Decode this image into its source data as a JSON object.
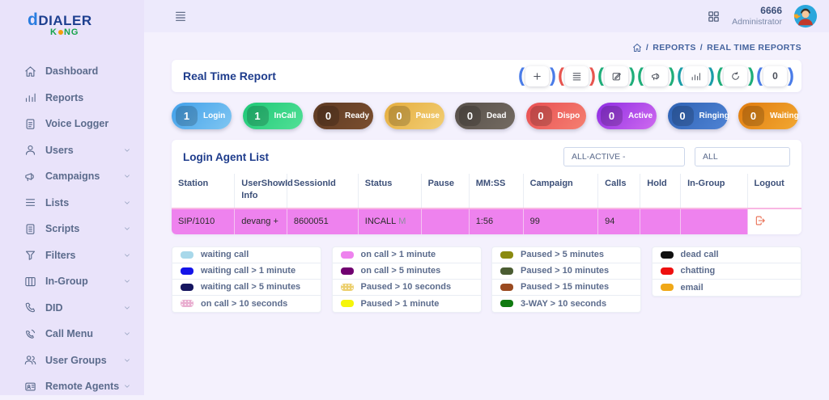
{
  "brand": {
    "line1": "DIALER",
    "line2_k": "K",
    "line2_ng": "NG"
  },
  "topbar": {
    "user_id": "6666",
    "user_role": "Administrator"
  },
  "breadcrumb": {
    "items": [
      "REPORTS",
      "REAL TIME REPORTS"
    ]
  },
  "sidebar": {
    "items": [
      {
        "label": "Dashboard",
        "icon": "home",
        "chevron": false
      },
      {
        "label": "Reports",
        "icon": "chart",
        "chevron": false
      },
      {
        "label": "Voice Logger",
        "icon": "voice",
        "chevron": false
      },
      {
        "label": "Users",
        "icon": "user",
        "chevron": true
      },
      {
        "label": "Campaigns",
        "icon": "megaphone",
        "chevron": true
      },
      {
        "label": "Lists",
        "icon": "list",
        "chevron": true
      },
      {
        "label": "Scripts",
        "icon": "script",
        "chevron": true
      },
      {
        "label": "Filters",
        "icon": "filter",
        "chevron": true
      },
      {
        "label": "In-Group",
        "icon": "ingroup",
        "chevron": true
      },
      {
        "label": "DID",
        "icon": "phone",
        "chevron": true
      },
      {
        "label": "Call Menu",
        "icon": "callmenu",
        "chevron": true
      },
      {
        "label": "User Groups",
        "icon": "usergroups",
        "chevron": true
      },
      {
        "label": "Remote Agents",
        "icon": "remote",
        "chevron": true
      }
    ]
  },
  "report": {
    "title": "Real Time Report",
    "buttons": [
      {
        "name": "add",
        "icon": "plus",
        "paren": "#4a7ce8",
        "text": null
      },
      {
        "name": "menu",
        "icon": "burger",
        "paren": "#e8554f",
        "text": null
      },
      {
        "name": "edit",
        "icon": "edit",
        "paren": "#1fae7a",
        "text": null
      },
      {
        "name": "broadcast",
        "icon": "megaphone",
        "paren": "#1fae7a",
        "text": null
      },
      {
        "name": "stats",
        "icon": "chart",
        "paren": "#1a9ea8",
        "text": null
      },
      {
        "name": "refresh",
        "icon": "refresh",
        "paren": "#1fae7a",
        "text": null
      },
      {
        "name": "counter",
        "icon": null,
        "paren": "#4a7ce8",
        "text": "0"
      }
    ]
  },
  "badges": [
    {
      "count": "1",
      "label": "Login",
      "from": "#41a0ea",
      "to": "#7fc6f2"
    },
    {
      "count": "1",
      "label": "InCall",
      "from": "#1ec877",
      "to": "#52e096"
    },
    {
      "count": "0",
      "label": "Ready",
      "from": "#5d3a23",
      "to": "#7b4e2f"
    },
    {
      "count": "0",
      "label": "Pause",
      "from": "#e5ad3e",
      "to": "#f2ce74"
    },
    {
      "count": "0",
      "label": "Dead",
      "from": "#564f49",
      "to": "#746b62"
    },
    {
      "count": "0",
      "label": "Dispo",
      "from": "#e84f52",
      "to": "#f58071"
    },
    {
      "count": "0",
      "label": "Active",
      "from": "#8e2de2",
      "to": "#cf6af0"
    },
    {
      "count": "0",
      "label": "Ringing",
      "from": "#2e62b4",
      "to": "#4f83d4"
    },
    {
      "count": "0",
      "label": "Waiting",
      "from": "#e07b0e",
      "to": "#f2a832"
    }
  ],
  "agent_list": {
    "title": "Login Agent List",
    "filters": [
      {
        "value": "ALL-ACTIVE -"
      },
      {
        "value": "ALL"
      }
    ],
    "columns": [
      {
        "line1": "Station",
        "line2": "",
        "width": "10%"
      },
      {
        "line1": "UserShowId",
        "line2": "Info",
        "width": "8.3%"
      },
      {
        "line1": "SessionId",
        "line2": "",
        "width": "11.3%"
      },
      {
        "line1": "Status",
        "line2": "",
        "width": "10%"
      },
      {
        "line1": "Pause",
        "line2": "",
        "width": "7.6%"
      },
      {
        "line1": "MM:SS",
        "line2": "",
        "width": "8.6%"
      },
      {
        "line1": "Campaign",
        "line2": "",
        "width": "11.9%"
      },
      {
        "line1": "Calls",
        "line2": "",
        "width": "6.7%"
      },
      {
        "line1": "Hold",
        "line2": "",
        "width": "6.4%"
      },
      {
        "line1": "In-Group",
        "line2": "",
        "width": "10.6%"
      },
      {
        "line1": "Logout",
        "line2": "",
        "width": "8.6%"
      }
    ],
    "rows": [
      {
        "cells": [
          {
            "t": "SIP/1010"
          },
          {
            "t": "devang +"
          },
          {
            "t": "8600051"
          },
          {
            "t": "INCALL",
            "suffix": "M"
          },
          {
            "t": ""
          },
          {
            "t": "1:56"
          },
          {
            "t": "99"
          },
          {
            "t": "94"
          },
          {
            "t": ""
          },
          {
            "t": ""
          },
          {
            "t": "",
            "logout": true
          }
        ],
        "row_color": "#ee82ee"
      }
    ]
  },
  "legend_groups": [
    [
      {
        "label": "waiting call",
        "color": "#a8d8ea",
        "pattern": "solid"
      },
      {
        "label": "waiting call > 1 minute",
        "color": "#1414e8",
        "pattern": "solid"
      },
      {
        "label": "waiting call > 5 minutes",
        "color": "#161660",
        "pattern": "solid"
      },
      {
        "label": "on call > 10 seconds",
        "color": "#e9aed0",
        "pattern": "dotted"
      }
    ],
    [
      {
        "label": "on call > 1 minute",
        "color": "#ee82ee",
        "pattern": "solid"
      },
      {
        "label": "on call > 5 minutes",
        "color": "#700070",
        "pattern": "solid"
      },
      {
        "label": "Paused > 10 seconds",
        "color": "#eccf6e",
        "pattern": "dotted"
      },
      {
        "label": "Paused > 1 minute",
        "color": "#f5f50a",
        "pattern": "solid"
      }
    ],
    [
      {
        "label": "Paused > 5 minutes",
        "color": "#8a8a10",
        "pattern": "solid"
      },
      {
        "label": "Paused > 10 minutes",
        "color": "#4a5c32",
        "pattern": "solid"
      },
      {
        "label": "Paused > 15 minutes",
        "color": "#9a4a20",
        "pattern": "solid"
      },
      {
        "label": "3-WAY > 10 seconds",
        "color": "#107a10",
        "pattern": "solid"
      }
    ],
    [
      {
        "label": "dead call",
        "color": "#101010",
        "pattern": "solid"
      },
      {
        "label": "chatting",
        "color": "#ee1010",
        "pattern": "solid"
      },
      {
        "label": "email",
        "color": "#f0a818",
        "pattern": "solid"
      }
    ]
  ]
}
